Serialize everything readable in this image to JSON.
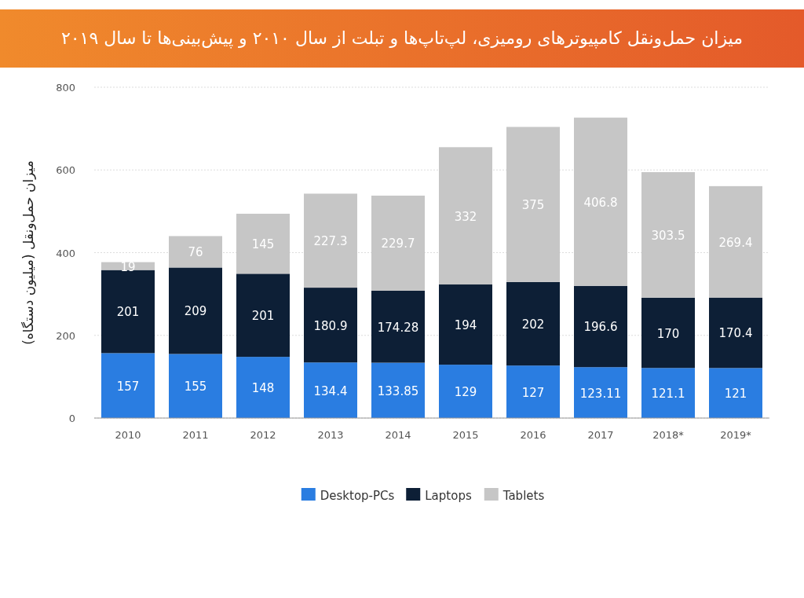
{
  "chart_data": {
    "type": "bar",
    "stacked": true,
    "title": "میزان حمل‌ونقل کامپیوترهای رومیزی، لپ‌تاپ‌ها و تبلت از سال ۲۰۱۰ و پیش‌بینی‌ها تا سال ۲۰۱۹",
    "ylabel": "میزان حمل‌ونقل (میلیون دستگاه)",
    "categories": [
      "2010",
      "2011",
      "2012",
      "2013",
      "2014",
      "2015",
      "2016",
      "2017",
      "2018*",
      "2019*"
    ],
    "series": [
      {
        "name": "Desktop-PCs",
        "color": "#2a7de1",
        "values": [
          157,
          155,
          148,
          134.4,
          133.85,
          129,
          127,
          123.11,
          121.1,
          121
        ]
      },
      {
        "name": "Laptops",
        "color": "#0d1f36",
        "values": [
          201,
          209,
          201,
          180.9,
          174.28,
          194,
          202,
          196.6,
          170,
          170.4
        ]
      },
      {
        "name": "Tablets",
        "color": "#c6c6c6",
        "values": [
          19,
          76,
          145,
          227.3,
          229.7,
          332,
          375,
          406.8,
          303.5,
          269.4
        ]
      }
    ],
    "ylim": [
      0,
      800
    ],
    "yticks": [
      0,
      200,
      400,
      600,
      800
    ],
    "grid": "y",
    "legend": "bottom",
    "data_labels": true
  }
}
